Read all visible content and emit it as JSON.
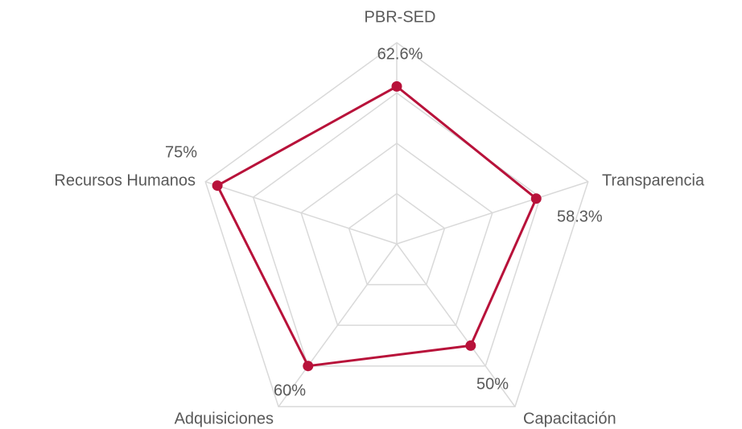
{
  "chart_data": {
    "type": "radar",
    "categories": [
      "PBR-SED",
      "Transparencia",
      "Capacitación",
      "Adquisiciones",
      "Recursos Humanos"
    ],
    "values": [
      62.6,
      58.3,
      50,
      60,
      75
    ],
    "value_labels": [
      "62.6%",
      "58.3%",
      "50%",
      "60%",
      "75%"
    ],
    "color": "#b8123a",
    "ylim": [
      0,
      80
    ],
    "yticks": [
      0,
      20,
      40,
      60,
      80
    ],
    "grid": true
  }
}
